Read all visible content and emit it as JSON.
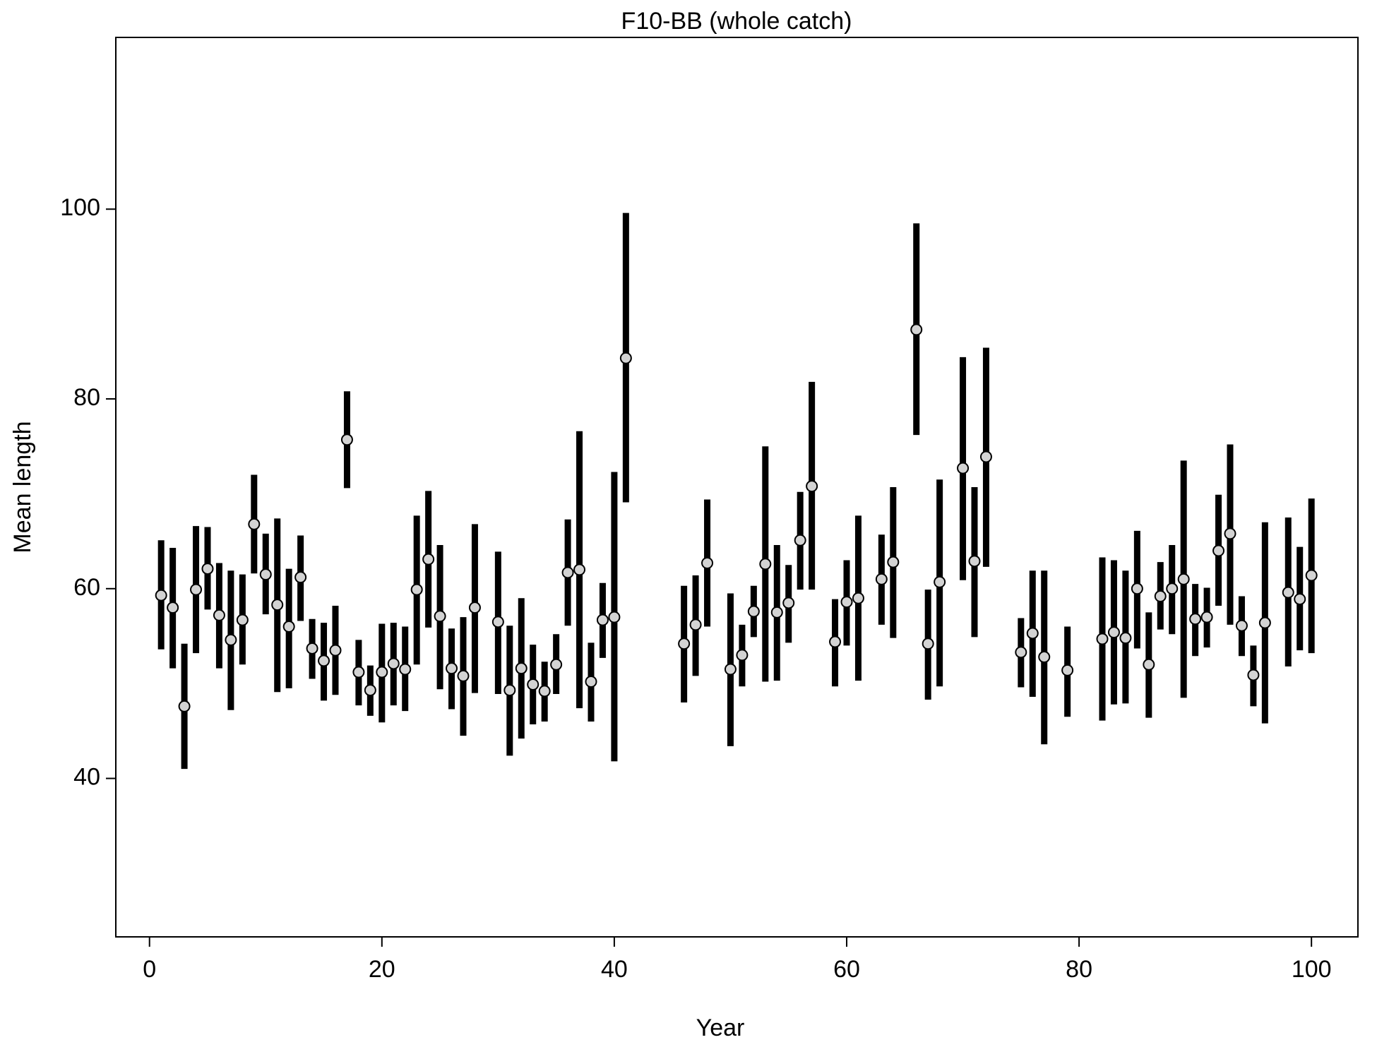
{
  "chart_data": {
    "type": "errorbar",
    "title": "F10-BB (whole catch)",
    "x_label": "Year",
    "y_label": "Mean length",
    "x": [
      1,
      2,
      3,
      4,
      5,
      6,
      7,
      8,
      9,
      10,
      11,
      12,
      13,
      14,
      15,
      16,
      17,
      18,
      19,
      20,
      21,
      22,
      23,
      24,
      25,
      26,
      27,
      28,
      30,
      31,
      32,
      33,
      34,
      35,
      36,
      37,
      38,
      39,
      40,
      41,
      46,
      47,
      48,
      50,
      51,
      52,
      53,
      54,
      55,
      56,
      57,
      59,
      60,
      61,
      63,
      64,
      66,
      67,
      68,
      70,
      71,
      72,
      75,
      76,
      77,
      79,
      82,
      83,
      84,
      85,
      86,
      87,
      88,
      89,
      90,
      91,
      92,
      93,
      94,
      95,
      96,
      98,
      99,
      100
    ],
    "series": [
      {
        "color": "#d3d3d3",
        "values": [
          59.3,
          58.0,
          47.6,
          59.9,
          62.1,
          57.2,
          54.6,
          56.7,
          66.8,
          61.5,
          58.3,
          56.0,
          61.2,
          53.7,
          52.4,
          53.5,
          75.7,
          51.2,
          49.3,
          51.2,
          52.1,
          51.5,
          59.9,
          63.1,
          57.1,
          51.6,
          50.8,
          58.0,
          56.5,
          49.3,
          51.6,
          49.9,
          49.2,
          52.0,
          61.7,
          62.0,
          50.2,
          56.7,
          57.0,
          84.3,
          54.2,
          56.2,
          62.7,
          51.5,
          53.0,
          57.6,
          62.6,
          57.5,
          58.5,
          65.1,
          70.8,
          54.4,
          58.6,
          59.0,
          61.0,
          62.8,
          87.3,
          54.2,
          60.7,
          72.7,
          62.9,
          73.9,
          53.3,
          55.3,
          52.8,
          51.4,
          54.7,
          55.4,
          54.8,
          60.0,
          52.0,
          59.2,
          60.0,
          61.0,
          56.8,
          57.0,
          64.0,
          65.8,
          56.1,
          50.9,
          56.4,
          59.6,
          58.9,
          61.4
        ],
        "lower": [
          53.6,
          51.6,
          41.0,
          53.2,
          57.8,
          51.6,
          47.2,
          52.0,
          61.6,
          57.3,
          49.1,
          49.5,
          56.6,
          50.5,
          48.2,
          48.8,
          70.6,
          47.7,
          46.6,
          45.9,
          47.7,
          47.1,
          52.0,
          55.9,
          49.4,
          47.3,
          44.5,
          49.0,
          48.9,
          42.4,
          44.2,
          45.7,
          46.0,
          48.9,
          56.1,
          47.4,
          46.0,
          52.7,
          41.8,
          69.1,
          48.0,
          50.8,
          56.0,
          43.4,
          49.7,
          54.9,
          50.2,
          50.3,
          54.3,
          59.9,
          59.9,
          49.7,
          54.0,
          50.3,
          56.2,
          54.8,
          76.2,
          48.3,
          49.7,
          60.9,
          54.9,
          62.3,
          49.6,
          48.6,
          43.6,
          46.5,
          46.1,
          47.8,
          47.9,
          53.7,
          46.4,
          55.7,
          55.2,
          48.5,
          52.9,
          53.8,
          58.2,
          56.2,
          52.9,
          47.6,
          45.8,
          51.8,
          53.5,
          53.2
        ],
        "upper": [
          65.1,
          64.3,
          54.2,
          66.6,
          66.5,
          62.7,
          61.9,
          61.5,
          72.0,
          65.8,
          67.4,
          62.1,
          65.6,
          56.8,
          56.4,
          58.2,
          80.8,
          54.6,
          51.9,
          56.3,
          56.4,
          56.0,
          67.7,
          70.3,
          64.6,
          55.8,
          57.0,
          66.8,
          63.9,
          56.1,
          59.0,
          54.1,
          52.3,
          55.2,
          67.3,
          76.6,
          54.3,
          60.6,
          72.3,
          99.6,
          60.3,
          61.4,
          69.4,
          59.5,
          56.2,
          60.3,
          75.0,
          64.6,
          62.5,
          70.2,
          81.8,
          58.9,
          63.0,
          67.7,
          65.7,
          70.7,
          98.5,
          59.9,
          71.5,
          84.4,
          70.7,
          85.4,
          56.9,
          61.9,
          61.9,
          56.0,
          63.3,
          63.0,
          61.9,
          66.1,
          57.5,
          62.8,
          64.6,
          73.5,
          60.5,
          60.1,
          69.9,
          75.2,
          59.2,
          54.0,
          67.0,
          67.5,
          64.4,
          69.5
        ]
      }
    ],
    "xlim": [
      -2.9,
      104
    ],
    "ylim": [
      23.3,
      118.1
    ],
    "xticks": [
      0,
      20,
      40,
      60,
      80,
      100
    ],
    "yticks": [
      40,
      60,
      80,
      100
    ],
    "bar_color": "#000000"
  }
}
